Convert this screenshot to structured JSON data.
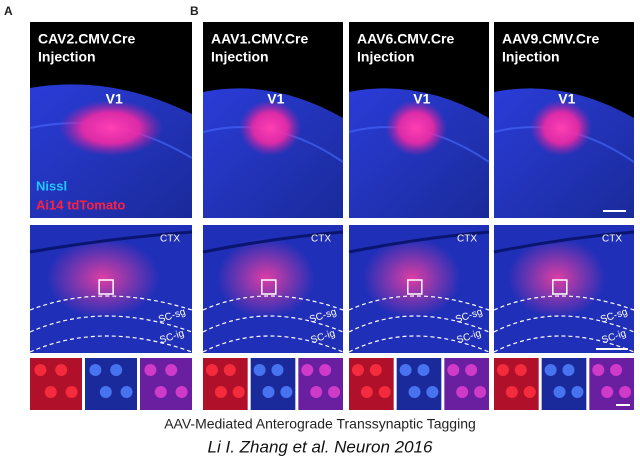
{
  "panel_labels": [
    "A",
    "B"
  ],
  "columns": [
    {
      "title": [
        "CAV2.CMV.Cre",
        "Injection"
      ],
      "region": "V1",
      "layers": [
        "CTX",
        "SC-sg",
        "SC-ig"
      ]
    },
    {
      "title": [
        "AAV1.CMV.Cre",
        "Injection"
      ],
      "region": "V1",
      "layers": [
        "CTX",
        "SC-sg",
        "SC-ig"
      ]
    },
    {
      "title": [
        "AAV6.CMV.Cre",
        "Injection"
      ],
      "region": "V1",
      "layers": [
        "CTX",
        "SC-sg",
        "SC-ig"
      ]
    },
    {
      "title": [
        "AAV9.CMV.Cre",
        "Injection"
      ],
      "region": "V1",
      "layers": [
        "CTX",
        "SC-sg",
        "SC-ig"
      ]
    }
  ],
  "legend": [
    "Nissl",
    "Ai14 tdTomato"
  ],
  "caption": {
    "title": "AAV-Mediated Anterograde Transsynaptic Tagging",
    "citation": "Li I. Zhang et al. Neuron 2016"
  }
}
